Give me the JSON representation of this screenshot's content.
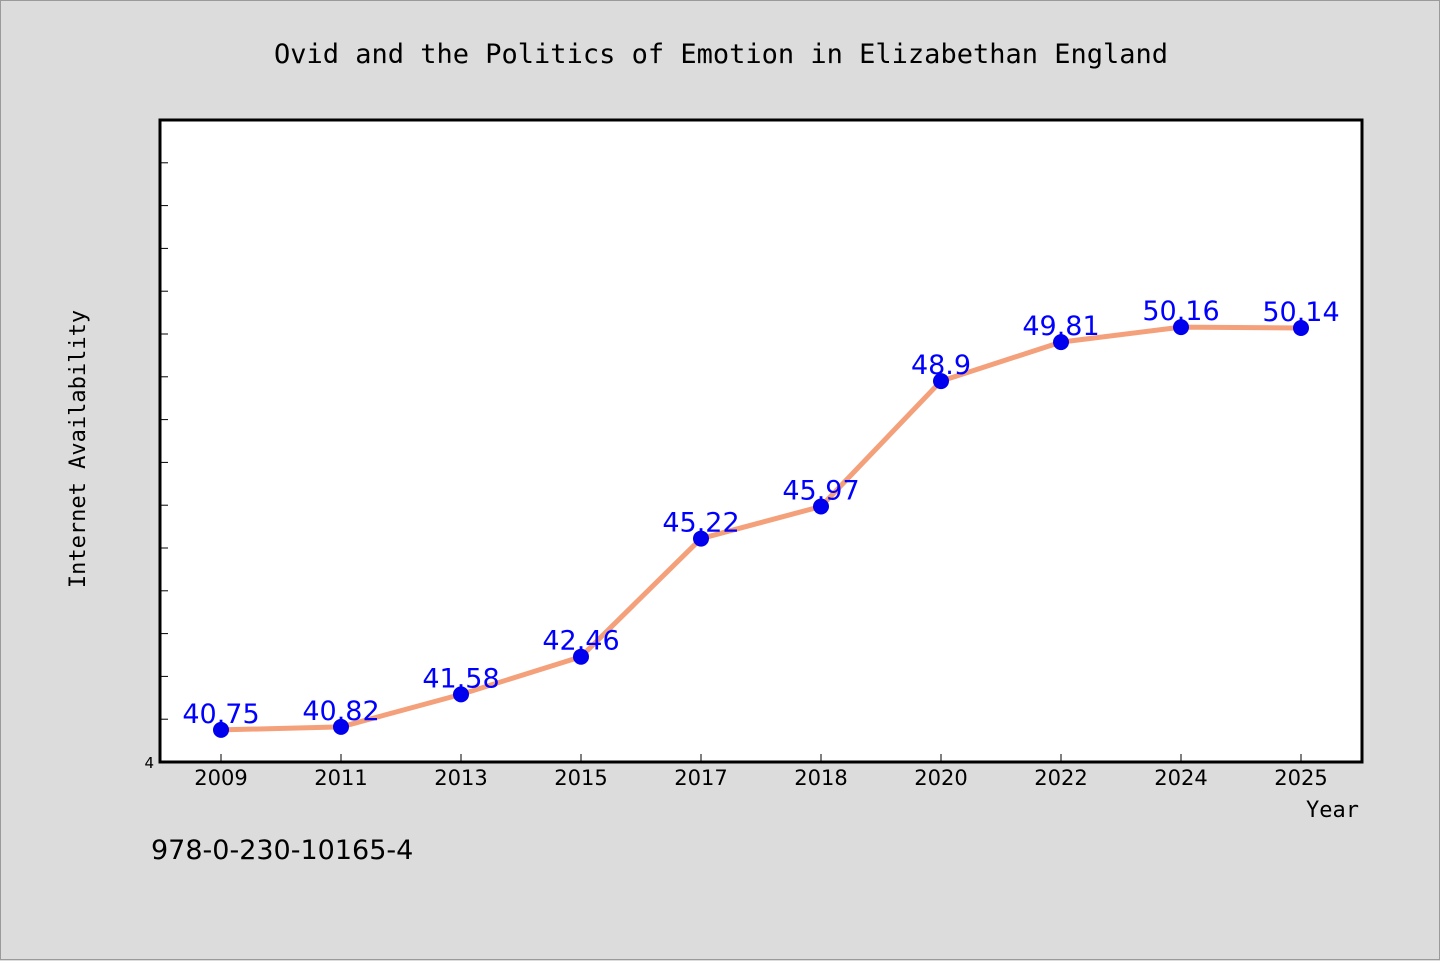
{
  "chart_data": {
    "type": "line",
    "title": "Ovid and the Politics of Emotion in Elizabethan England",
    "xlabel": "Year",
    "ylabel": "Internet Availability",
    "categories": [
      "2009",
      "2011",
      "2013",
      "2015",
      "2017",
      "2018",
      "2020",
      "2022",
      "2024",
      "2025"
    ],
    "series": [
      {
        "values": [
          40.75,
          40.82,
          41.58,
          42.46,
          45.22,
          45.97,
          48.9,
          49.81,
          50.16,
          50.14
        ],
        "labels": [
          "40.75",
          "40.82",
          "41.58",
          "42.46",
          "45.22",
          "45.97",
          "48.9",
          "49.81",
          "50.16",
          "50.14"
        ]
      }
    ],
    "ylim": [
      40,
      55
    ],
    "ytick_labels": [
      "4"
    ],
    "grid": false,
    "legend": "none",
    "colors": {
      "line": "#f4a07a",
      "marker": "#0000ee",
      "data_label": "#0000ff",
      "plot_background": "#ffffff",
      "figure_background": "#dcdcdc"
    }
  },
  "footer": {
    "isbn": "978-0-230-10165-4"
  }
}
